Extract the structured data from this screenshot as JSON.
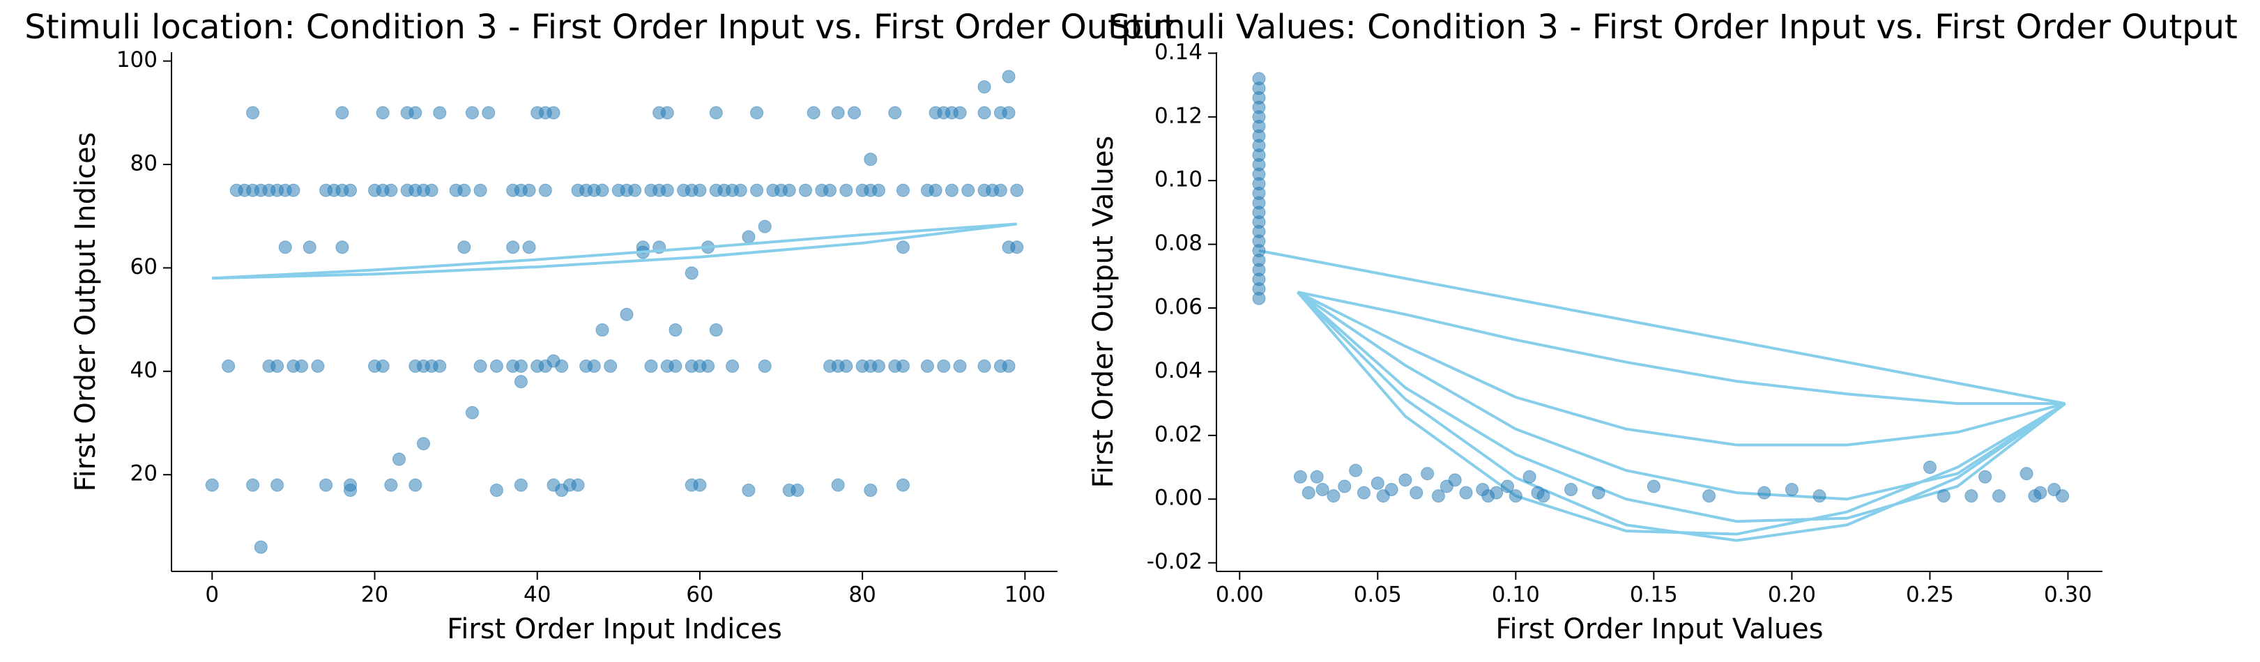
{
  "chart_data": [
    {
      "type": "scatter",
      "title": "Stimuli location: Condition 3 - First Order Input vs. First Order Output",
      "xlabel": "First Order Input Indices",
      "ylabel": "First Order Output Indices",
      "xlim": [
        -5,
        104
      ],
      "ylim": [
        1.3,
        101.7
      ],
      "xticks": [
        0,
        20,
        40,
        60,
        80,
        100
      ],
      "yticks": [
        20,
        40,
        60,
        80,
        100
      ],
      "series": [
        {
          "type": "scatter",
          "color": "#1f77b4",
          "x": [
            3,
            4,
            5,
            6,
            7,
            8,
            9,
            10,
            14,
            15,
            16,
            17,
            20,
            21,
            22,
            24,
            25,
            26,
            27,
            30,
            31,
            33,
            37,
            38,
            39,
            41,
            45,
            46,
            47,
            48,
            50,
            51,
            52,
            54,
            55,
            56,
            58,
            59,
            60,
            62,
            63,
            64,
            65,
            67,
            69,
            70,
            71,
            73,
            75,
            76,
            78,
            80,
            81,
            82,
            85,
            88,
            89,
            91,
            93,
            95,
            96,
            97,
            99,
            5,
            16,
            21,
            24,
            25,
            28,
            32,
            34,
            40,
            41,
            42,
            55,
            56,
            62,
            67,
            74,
            77,
            79,
            84,
            89,
            90,
            91,
            92,
            95,
            97,
            98,
            2,
            7,
            8,
            10,
            11,
            13,
            20,
            21,
            25,
            26,
            27,
            28,
            33,
            35,
            37,
            38,
            40,
            41,
            43,
            46,
            47,
            49,
            54,
            56,
            57,
            59,
            60,
            61,
            64,
            68,
            76,
            77,
            78,
            80,
            81,
            82,
            84,
            85,
            88,
            90,
            92,
            95,
            97,
            98,
            0,
            5,
            8,
            14,
            17,
            22,
            25,
            35,
            38,
            42,
            43,
            44,
            45,
            59,
            60,
            66,
            71,
            72,
            77,
            81,
            85,
            9,
            12,
            16,
            31,
            37,
            39,
            53,
            55,
            61,
            85,
            98,
            99,
            6,
            17,
            23,
            26,
            32,
            38,
            42,
            48,
            51,
            59,
            66,
            68,
            81,
            95,
            98,
            53,
            57,
            62
          ],
          "values": [
            75,
            75,
            75,
            75,
            75,
            75,
            75,
            75,
            75,
            75,
            75,
            75,
            75,
            75,
            75,
            75,
            75,
            75,
            75,
            75,
            75,
            75,
            75,
            75,
            75,
            75,
            75,
            75,
            75,
            75,
            75,
            75,
            75,
            75,
            75,
            75,
            75,
            75,
            75,
            75,
            75,
            75,
            75,
            75,
            75,
            75,
            75,
            75,
            75,
            75,
            75,
            75,
            75,
            75,
            75,
            75,
            75,
            75,
            75,
            75,
            75,
            75,
            75,
            90,
            90,
            90,
            90,
            90,
            90,
            90,
            90,
            90,
            90,
            90,
            90,
            90,
            90,
            90,
            90,
            90,
            90,
            90,
            90,
            90,
            90,
            90,
            90,
            90,
            90,
            41,
            41,
            41,
            41,
            41,
            41,
            41,
            41,
            41,
            41,
            41,
            41,
            41,
            41,
            41,
            41,
            41,
            41,
            41,
            41,
            41,
            41,
            41,
            41,
            41,
            41,
            41,
            41,
            41,
            41,
            41,
            41,
            41,
            41,
            41,
            41,
            41,
            41,
            41,
            41,
            41,
            41,
            41,
            41,
            18,
            18,
            18,
            18,
            18,
            18,
            18,
            17,
            18,
            18,
            17,
            18,
            18,
            18,
            18,
            17,
            17,
            17,
            18,
            17,
            18,
            64,
            64,
            64,
            64,
            64,
            64,
            64,
            64,
            64,
            64,
            64,
            64,
            6,
            17,
            23,
            26,
            32,
            38,
            42,
            48,
            51,
            59,
            66,
            68,
            81,
            95,
            97,
            63,
            48,
            48
          ]
        },
        {
          "type": "line",
          "color": "#87ceeb",
          "x": [
            0,
            20,
            40,
            60,
            80,
            99
          ],
          "values": [
            58,
            58.8,
            60.2,
            62.1,
            64.8,
            68.5
          ]
        },
        {
          "type": "line",
          "color": "#87ceeb",
          "x": [
            0,
            20,
            40,
            60,
            80,
            99
          ],
          "values": [
            58,
            59.6,
            61.6,
            63.9,
            66.4,
            68.5
          ]
        }
      ]
    },
    {
      "type": "scatter",
      "title": "Stimuli Values: Condition 3 - First Order Input vs. First Order Output",
      "xlabel": "First Order Input Values",
      "ylabel": "First Order Output Values",
      "xlim": [
        -0.0084,
        0.3125
      ],
      "ylim": [
        -0.0227,
        0.1403
      ],
      "xticks": [
        {
          "value": 0,
          "label": "0.00"
        },
        {
          "value": 0.05,
          "label": "0.05"
        },
        {
          "value": 0.1,
          "label": "0.10"
        },
        {
          "value": 0.15,
          "label": "0.15"
        },
        {
          "value": 0.2,
          "label": "0.20"
        },
        {
          "value": 0.25,
          "label": "0.25"
        },
        {
          "value": 0.3,
          "label": "0.30"
        }
      ],
      "yticks": [
        {
          "value": -0.02,
          "label": "-0.02"
        },
        {
          "value": 0,
          "label": "0.00"
        },
        {
          "value": 0.02,
          "label": "0.02"
        },
        {
          "value": 0.04,
          "label": "0.04"
        },
        {
          "value": 0.06,
          "label": "0.06"
        },
        {
          "value": 0.08,
          "label": "0.08"
        },
        {
          "value": 0.1,
          "label": "0.10"
        },
        {
          "value": 0.12,
          "label": "0.12"
        },
        {
          "value": 0.14,
          "label": "0.14"
        }
      ],
      "series": [
        {
          "type": "line",
          "color": "#87ceeb",
          "x": [
            0.021,
            0.06,
            0.1,
            0.14,
            0.18,
            0.22,
            0.26,
            0.299
          ],
          "values": [
            0.065,
            0.0314,
            0.0067,
            -0.0081,
            -0.013,
            -0.0081,
            0.0067,
            0.03
          ]
        },
        {
          "type": "line",
          "color": "#87ceeb",
          "x": [
            0.021,
            0.06,
            0.1,
            0.14,
            0.18,
            0.22,
            0.26,
            0.299
          ],
          "values": [
            0.065,
            0.042,
            0.022,
            0.009,
            0.002,
            0.0,
            0.008,
            0.03
          ]
        },
        {
          "type": "line",
          "color": "#87ceeb",
          "x": [
            0.021,
            0.06,
            0.1,
            0.14,
            0.18,
            0.22,
            0.26,
            0.299
          ],
          "values": [
            0.065,
            0.035,
            0.014,
            0.0,
            -0.007,
            -0.006,
            0.004,
            0.03
          ]
        },
        {
          "type": "line",
          "color": "#87ceeb",
          "x": [
            0.021,
            0.06,
            0.1,
            0.14,
            0.18,
            0.22,
            0.26,
            0.299
          ],
          "values": [
            0.065,
            0.058,
            0.05,
            0.043,
            0.037,
            0.033,
            0.03,
            0.03
          ]
        },
        {
          "type": "line",
          "color": "#87ceeb",
          "x": [
            0.021,
            0.06,
            0.1,
            0.14,
            0.18,
            0.22,
            0.26,
            0.299
          ],
          "values": [
            0.065,
            0.048,
            0.032,
            0.022,
            0.017,
            0.017,
            0.021,
            0.03
          ]
        },
        {
          "type": "line",
          "color": "#87ceeb",
          "x": [
            0.021,
            0.06,
            0.1,
            0.14,
            0.18,
            0.22,
            0.26,
            0.299
          ],
          "values": [
            0.065,
            0.026,
            0.001,
            -0.01,
            -0.011,
            -0.004,
            0.01,
            0.03
          ]
        },
        {
          "type": "line",
          "color": "#87ceeb",
          "x": [
            0.007,
            0.299
          ],
          "values": [
            0.078,
            0.03
          ]
        },
        {
          "type": "scatter",
          "color": "#1f77b4",
          "x": [
            0.007,
            0.007,
            0.007,
            0.007,
            0.007,
            0.007,
            0.007,
            0.007,
            0.007,
            0.007,
            0.007,
            0.007,
            0.007,
            0.007,
            0.007,
            0.007,
            0.007,
            0.007,
            0.007,
            0.007,
            0.007,
            0.007,
            0.007,
            0.007,
            0.022,
            0.025,
            0.028,
            0.03,
            0.034,
            0.038,
            0.042,
            0.045,
            0.05,
            0.052,
            0.055,
            0.06,
            0.064,
            0.068,
            0.072,
            0.075,
            0.078,
            0.082,
            0.088,
            0.09,
            0.093,
            0.097,
            0.1,
            0.105,
            0.108,
            0.11,
            0.12,
            0.13,
            0.15,
            0.17,
            0.19,
            0.2,
            0.21,
            0.25,
            0.255,
            0.265,
            0.27,
            0.275,
            0.285,
            0.288,
            0.29,
            0.295,
            0.298
          ],
          "values": [
            0.063,
            0.066,
            0.069,
            0.072,
            0.075,
            0.078,
            0.081,
            0.084,
            0.087,
            0.09,
            0.093,
            0.096,
            0.099,
            0.102,
            0.105,
            0.108,
            0.111,
            0.114,
            0.117,
            0.12,
            0.123,
            0.126,
            0.129,
            0.132,
            0.007,
            0.002,
            0.007,
            0.003,
            0.001,
            0.004,
            0.009,
            0.002,
            0.005,
            0.001,
            0.003,
            0.006,
            0.002,
            0.008,
            0.001,
            0.004,
            0.006,
            0.002,
            0.003,
            0.001,
            0.002,
            0.004,
            0.001,
            0.007,
            0.002,
            0.001,
            0.003,
            0.002,
            0.004,
            0.001,
            0.002,
            0.003,
            0.001,
            0.01,
            0.001,
            0.001,
            0.007,
            0.001,
            0.008,
            0.001,
            0.002,
            0.003,
            0.001
          ]
        }
      ]
    }
  ]
}
